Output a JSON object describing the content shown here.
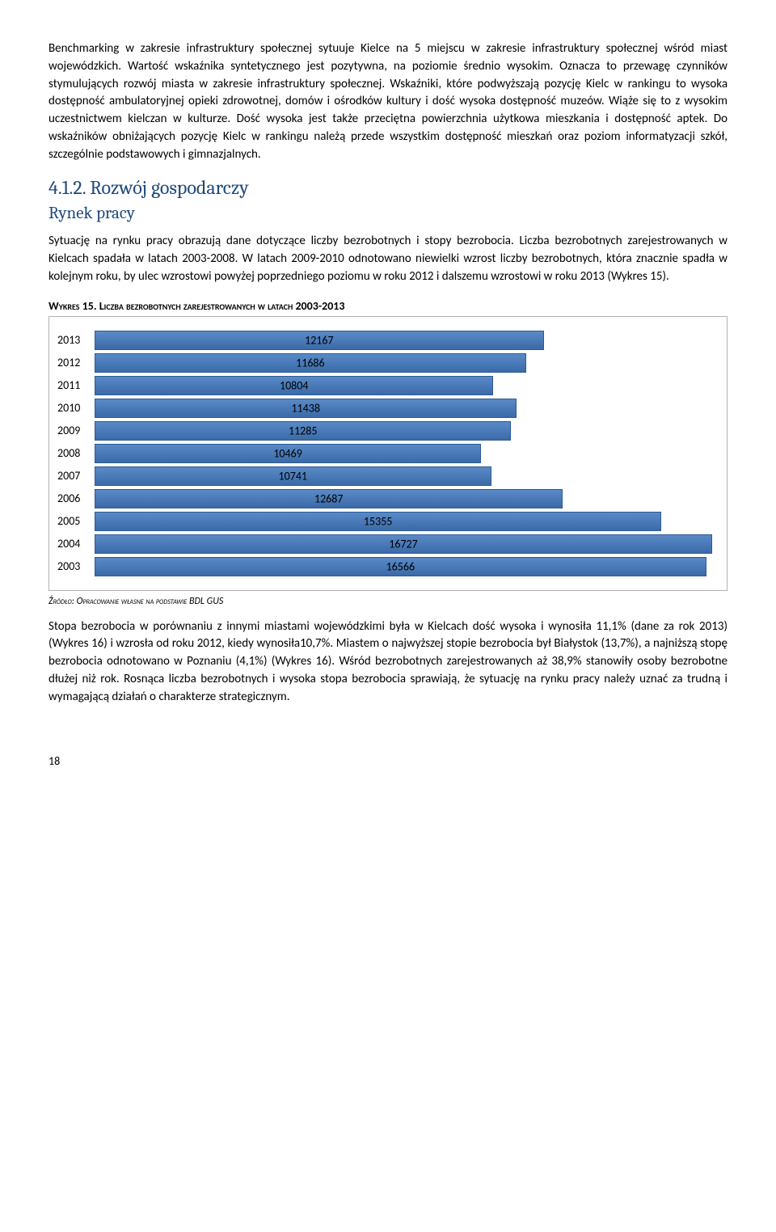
{
  "para1": "Benchmarking w zakresie infrastruktury społecznej sytuuje Kielce na 5 miejscu w zakresie infrastruktury społecznej wśród miast wojewódzkich. Wartość wskaźnika syntetycznego jest pozytywna, na poziomie średnio wysokim. Oznacza to przewagę czynników stymulujących rozwój miasta w zakresie infrastruktury społecznej. Wskaźniki, które podwyższają pozycję Kielc w rankingu to wysoka dostępność ambulatoryjnej opieki zdrowotnej, domów i ośrodków kultury i dość wysoka dostępność muzeów. Wiąże się to z wysokim uczestnictwem kielczan w kulturze. Dość wysoka jest także przeciętna powierzchnia użytkowa mieszkania i dostępność aptek. Do wskaźników obniżających pozycję Kielc w rankingu należą przede wszystkim dostępność mieszkań oraz poziom informatyzacji szkół, szczególnie podstawowych i gimnazjalnych.",
  "section_heading": "4.1.2. Rozwój gospodarczy",
  "subheading": "Rynek pracy",
  "para2": "Sytuację na rynku pracy obrazują dane dotyczące liczby bezrobotnych i stopy bezrobocia. Liczba bezrobotnych zarejestrowanych w Kielcach spadała w latach 2003-2008. W latach 2009-2010 odnotowano niewielki wzrost liczby bezrobotnych, która znacznie spadła w kolejnym roku, by ulec wzrostowi powyżej poprzedniego poziomu w roku 2012 i dalszemu wzrostowi w roku 2013 (Wykres 15).",
  "chart": {
    "title": "Wykres 15. Liczba bezrobotnych zarejestrowanych w latach 2003-2013",
    "max": 16727,
    "rows": [
      {
        "year": "2013",
        "value": 12167
      },
      {
        "year": "2012",
        "value": 11686
      },
      {
        "year": "2011",
        "value": 10804
      },
      {
        "year": "2010",
        "value": 11438
      },
      {
        "year": "2009",
        "value": 11285
      },
      {
        "year": "2008",
        "value": 10469
      },
      {
        "year": "2007",
        "value": 10741
      },
      {
        "year": "2006",
        "value": 12687
      },
      {
        "year": "2005",
        "value": 15355
      },
      {
        "year": "2004",
        "value": 16727
      },
      {
        "year": "2003",
        "value": 16566
      }
    ],
    "source": "Źródło: Opracowanie własne na podstawie BDL GUS"
  },
  "para3": "Stopa bezrobocia w porównaniu z innymi miastami wojewódzkimi była w Kielcach dość wysoka i wynosiła 11,1% (dane za rok 2013) (Wykres 16) i wzrosła od roku 2012, kiedy wynosiła10,7%. Miastem o najwyższej stopie bezrobocia był Białystok (13,7%), a najniższą stopę bezrobocia odnotowano w Poznaniu (4,1%) (Wykres 16). Wśród bezrobotnych zarejestrowanych aż 38,9% stanowiły osoby bezrobotne dłużej niż rok. Rosnąca liczba bezrobotnych i wysoka stopa bezrobocia sprawiają, że sytuację na rynku pracy należy uznać za trudną i wymagającą działań o charakterze strategicznym.",
  "page_number": "18"
}
